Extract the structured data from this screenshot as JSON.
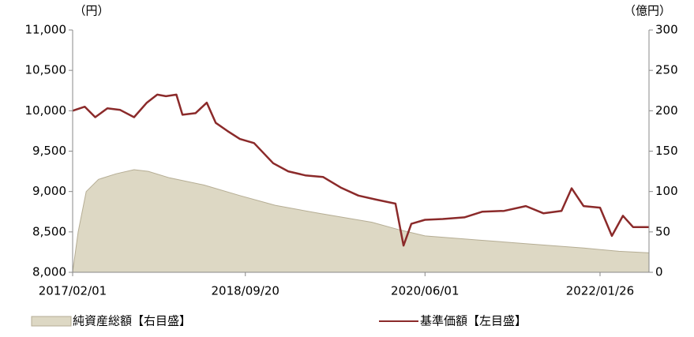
{
  "chart_data": {
    "type": "line-area-dual",
    "y_unit_label": "（円）",
    "y2_unit_label": "（億円）",
    "xlim": [
      "2017/02/01",
      "2022/07/14"
    ],
    "xticks": [
      "2017/02/01",
      "2018/09/20",
      "2020/06/01",
      "2022/01/26"
    ],
    "ylim": [
      8000,
      11000
    ],
    "yticks": [
      {
        "value": 8000,
        "label": "8,000"
      },
      {
        "value": 8500,
        "label": "8,500"
      },
      {
        "value": 9000,
        "label": "9,000"
      },
      {
        "value": 9500,
        "label": "9,500"
      },
      {
        "value": 10000,
        "label": "10,000"
      },
      {
        "value": 10500,
        "label": "10,500"
      },
      {
        "value": 11000,
        "label": "11,000"
      }
    ],
    "y2lim": [
      0,
      300
    ],
    "y2ticks": [
      0,
      50,
      100,
      150,
      200,
      250,
      300
    ],
    "grid": false,
    "series": [
      {
        "name": "純資産総額【右目盛】",
        "kind": "area",
        "axis": "y2",
        "color": "#ddd8c4",
        "x": [
          "2017/02/01",
          "2017/02/20",
          "2017/03/20",
          "2017/05/01",
          "2017/07/01",
          "2017/09/01",
          "2017/10/20",
          "2018/01/01",
          "2018/05/01",
          "2018/09/01",
          "2019/01/01",
          "2019/06/01",
          "2019/12/01",
          "2020/03/01",
          "2020/06/01",
          "2020/12/01",
          "2021/06/01",
          "2021/12/01",
          "2022/04/01",
          "2022/07/14"
        ],
        "values": [
          0,
          50,
          100,
          115,
          122,
          127,
          125,
          117,
          108,
          95,
          83,
          73,
          62,
          53,
          45,
          40,
          35,
          30,
          26,
          24
        ]
      },
      {
        "name": "基準価額【左目盛】",
        "kind": "line",
        "axis": "y",
        "color": "#8b2a2a",
        "x": [
          "2017/02/01",
          "2017/03/15",
          "2017/04/20",
          "2017/06/01",
          "2017/07/15",
          "2017/09/01",
          "2017/10/15",
          "2017/11/20",
          "2017/12/20",
          "2018/01/25",
          "2018/02/15",
          "2018/04/01",
          "2018/05/10",
          "2018/06/10",
          "2018/07/20",
          "2018/09/01",
          "2018/10/20",
          "2018/12/25",
          "2019/02/15",
          "2019/04/15",
          "2019/06/15",
          "2019/08/15",
          "2019/10/15",
          "2019/12/15",
          "2020/02/20",
          "2020/03/19",
          "2020/04/15",
          "2020/06/01",
          "2020/08/01",
          "2020/10/15",
          "2020/12/15",
          "2021/03/01",
          "2021/05/15",
          "2021/07/15",
          "2021/09/15",
          "2021/10/20",
          "2021/11/30",
          "2022/01/26",
          "2022/03/08",
          "2022/04/15",
          "2022/05/20",
          "2022/07/14"
        ],
        "values": [
          10000,
          10050,
          9920,
          10030,
          10010,
          9920,
          10100,
          10200,
          10180,
          10200,
          9950,
          9970,
          10100,
          9850,
          9750,
          9650,
          9600,
          9350,
          9250,
          9200,
          9180,
          9050,
          8950,
          8900,
          8850,
          8330,
          8600,
          8650,
          8660,
          8680,
          8750,
          8760,
          8820,
          8730,
          8760,
          9040,
          8820,
          8800,
          8450,
          8700,
          8560,
          8560
        ]
      }
    ]
  }
}
